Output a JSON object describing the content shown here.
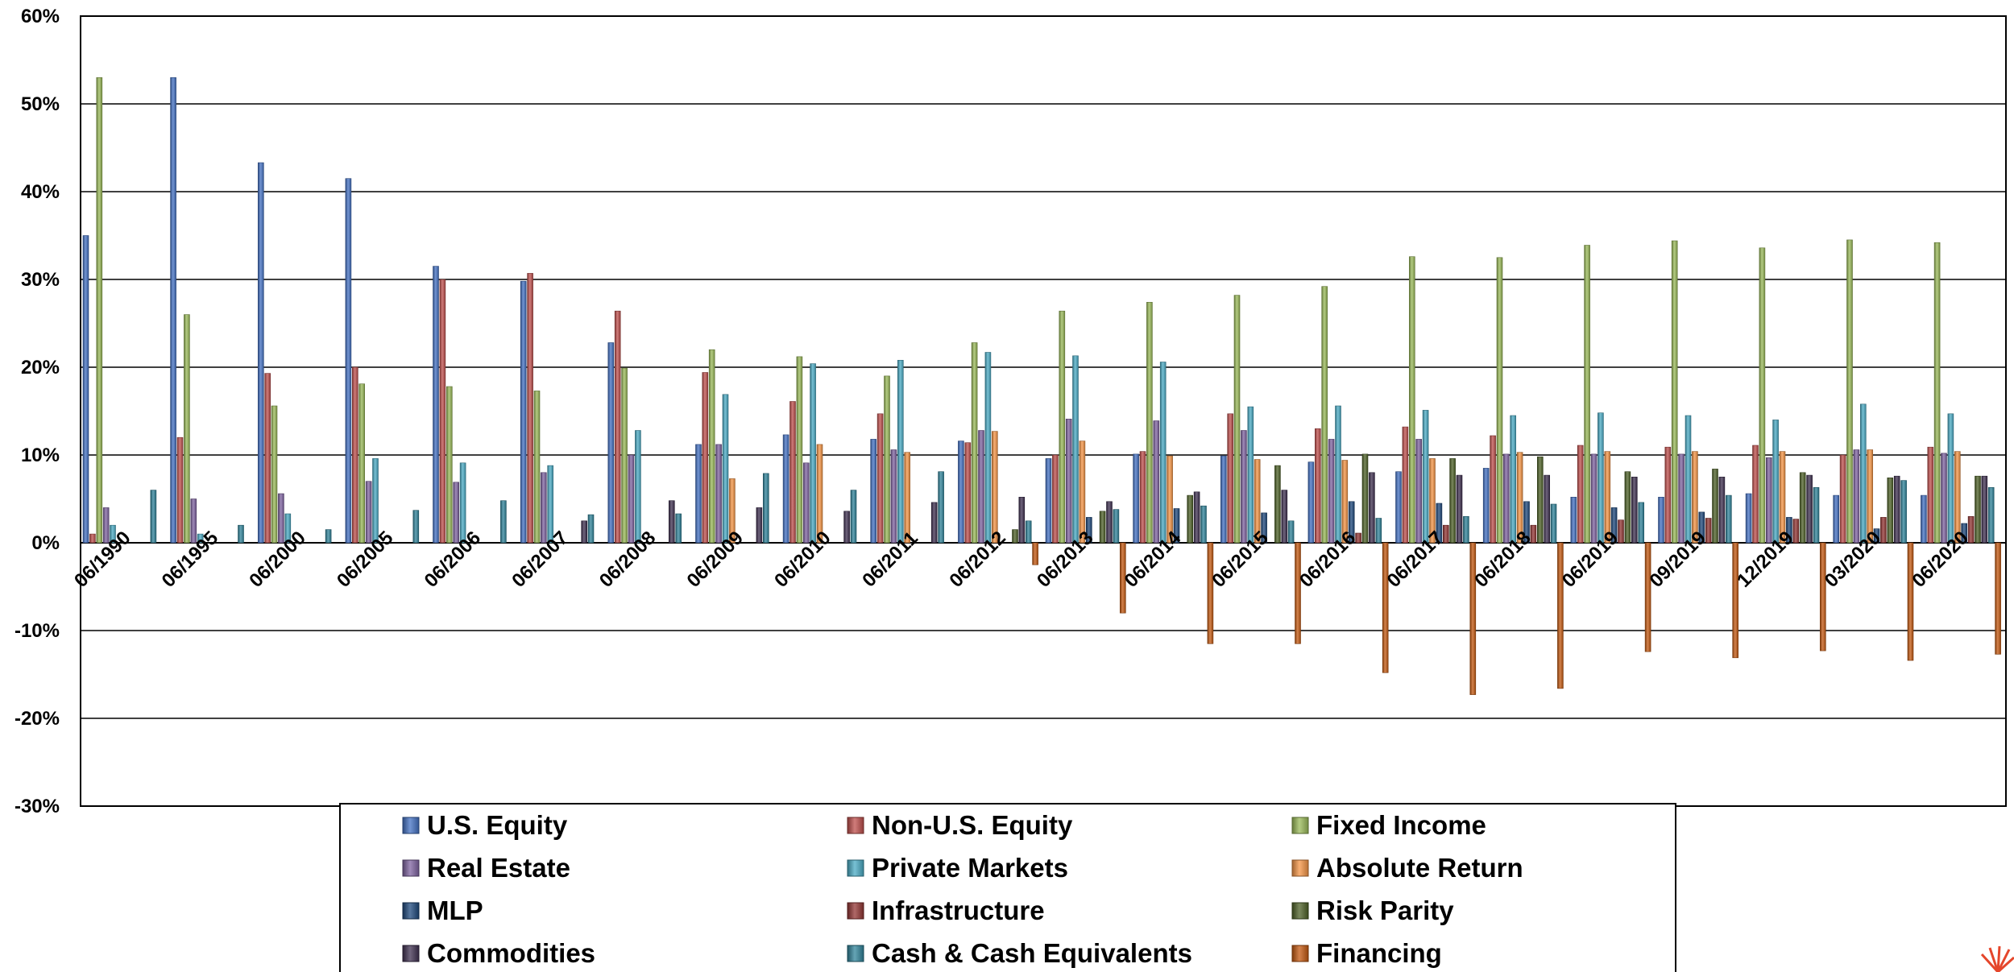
{
  "chart_data": {
    "type": "bar",
    "ylim": [
      -30,
      60
    ],
    "yticks": [
      60,
      50,
      40,
      30,
      20,
      10,
      0,
      -10,
      -20,
      -30
    ],
    "ytick_labels": [
      "60%",
      "50%",
      "40%",
      "30%",
      "20%",
      "10%",
      "0%",
      "-10%",
      "-20%",
      "-30%"
    ],
    "grid": true,
    "legend_position": "bottom",
    "categories": [
      "06/1990",
      "06/1995",
      "06/2000",
      "06/2005",
      "06/2006",
      "06/2007",
      "06/2008",
      "06/2009",
      "06/2010",
      "06/2011",
      "06/2012",
      "06/2013",
      "06/2014",
      "06/2015",
      "06/2016",
      "06/2017",
      "06/2018",
      "06/2019",
      "09/2019",
      "12/2019",
      "03/2020",
      "06/2020"
    ],
    "series": [
      {
        "name": "U.S. Equity",
        "color": "#4472C4",
        "values": [
          35,
          53,
          43.3,
          41.5,
          31.5,
          29.8,
          22.8,
          11.2,
          12.3,
          11.8,
          11.6,
          9.6,
          10.1,
          9.9,
          9.2,
          8.1,
          8.5,
          5.2,
          5.2,
          5.6,
          5.4,
          5.4
        ]
      },
      {
        "name": "Non-U.S. Equity",
        "color": "#C0504D",
        "values": [
          1,
          12,
          19.3,
          20,
          30,
          30.7,
          26.4,
          19.4,
          16.1,
          14.7,
          11.4,
          10,
          10.4,
          14.7,
          13,
          13.2,
          12.2,
          11.1,
          10.9,
          11.1,
          10,
          10.9
        ]
      },
      {
        "name": "Fixed Income",
        "color": "#9BBB59",
        "values": [
          53,
          26,
          15.6,
          18.1,
          17.8,
          17.3,
          19.9,
          22,
          21.2,
          19,
          22.8,
          26.4,
          27.4,
          28.2,
          29.2,
          32.6,
          32.5,
          33.9,
          34.4,
          33.6,
          34.5,
          34.2
        ]
      },
      {
        "name": "Real Estate",
        "color": "#8064A2",
        "values": [
          4,
          5,
          5.6,
          7,
          6.9,
          8,
          10,
          11.2,
          9.1,
          10.6,
          12.8,
          14.1,
          13.9,
          12.8,
          11.8,
          11.8,
          10.1,
          10.1,
          10.1,
          9.7,
          10.6,
          10.2
        ]
      },
      {
        "name": "Private Markets",
        "color": "#4BACC6",
        "values": [
          2,
          1,
          3.3,
          9.6,
          9.1,
          8.8,
          12.8,
          16.9,
          20.4,
          20.8,
          21.7,
          21.3,
          20.6,
          15.5,
          15.6,
          15.1,
          14.5,
          14.8,
          14.5,
          14,
          15.8,
          14.7
        ]
      },
      {
        "name": "Absolute Return",
        "color": "#F79646",
        "values": [
          null,
          null,
          null,
          null,
          null,
          null,
          null,
          7.3,
          11.2,
          10.3,
          12.7,
          11.6,
          9.9,
          9.5,
          9.4,
          9.6,
          10.3,
          10.4,
          10.4,
          10.4,
          10.6,
          10.4
        ]
      },
      {
        "name": "MLP",
        "color": "#1F497D",
        "values": [
          null,
          null,
          null,
          null,
          null,
          null,
          null,
          null,
          null,
          null,
          null,
          2.9,
          3.9,
          3.4,
          4.7,
          4.5,
          4.7,
          4,
          3.5,
          2.9,
          1.6,
          2.2
        ]
      },
      {
        "name": "Infrastructure",
        "color": "#943634",
        "values": [
          null,
          null,
          null,
          null,
          null,
          null,
          null,
          null,
          null,
          null,
          null,
          null,
          null,
          null,
          1.1,
          2,
          2,
          2.6,
          2.8,
          2.7,
          2.9,
          3
        ]
      },
      {
        "name": "Risk Parity",
        "color": "#4F6228",
        "values": [
          null,
          null,
          null,
          null,
          null,
          null,
          null,
          null,
          null,
          null,
          1.5,
          3.6,
          5.4,
          8.8,
          10.1,
          9.6,
          9.8,
          8.1,
          8.4,
          8,
          7.4,
          7.6
        ]
      },
      {
        "name": "Commodities",
        "color": "#403151",
        "values": [
          null,
          null,
          null,
          null,
          null,
          2.5,
          4.8,
          4,
          3.6,
          4.6,
          5.2,
          4.7,
          5.8,
          6,
          8,
          7.7,
          7.7,
          7.5,
          7.5,
          7.7,
          7.6,
          7.6
        ]
      },
      {
        "name": "Cash & Cash Equivalents",
        "color": "#31859C",
        "values": [
          6,
          2,
          1.5,
          3.7,
          4.8,
          3.2,
          3.3,
          7.9,
          6,
          8.1,
          2.5,
          3.8,
          4.2,
          2.5,
          2.8,
          3,
          4.4,
          4.6,
          5.4,
          6.3,
          7.1,
          6.3
        ]
      },
      {
        "name": "Financing",
        "color": "#C55A11",
        "values": [
          null,
          null,
          null,
          null,
          null,
          null,
          null,
          null,
          null,
          null,
          -2.5,
          -8,
          -11.5,
          -11.5,
          -14.8,
          -17.3,
          -16.6,
          -12.4,
          -13.1,
          -12.3,
          -13.4,
          -12.7
        ]
      }
    ]
  }
}
